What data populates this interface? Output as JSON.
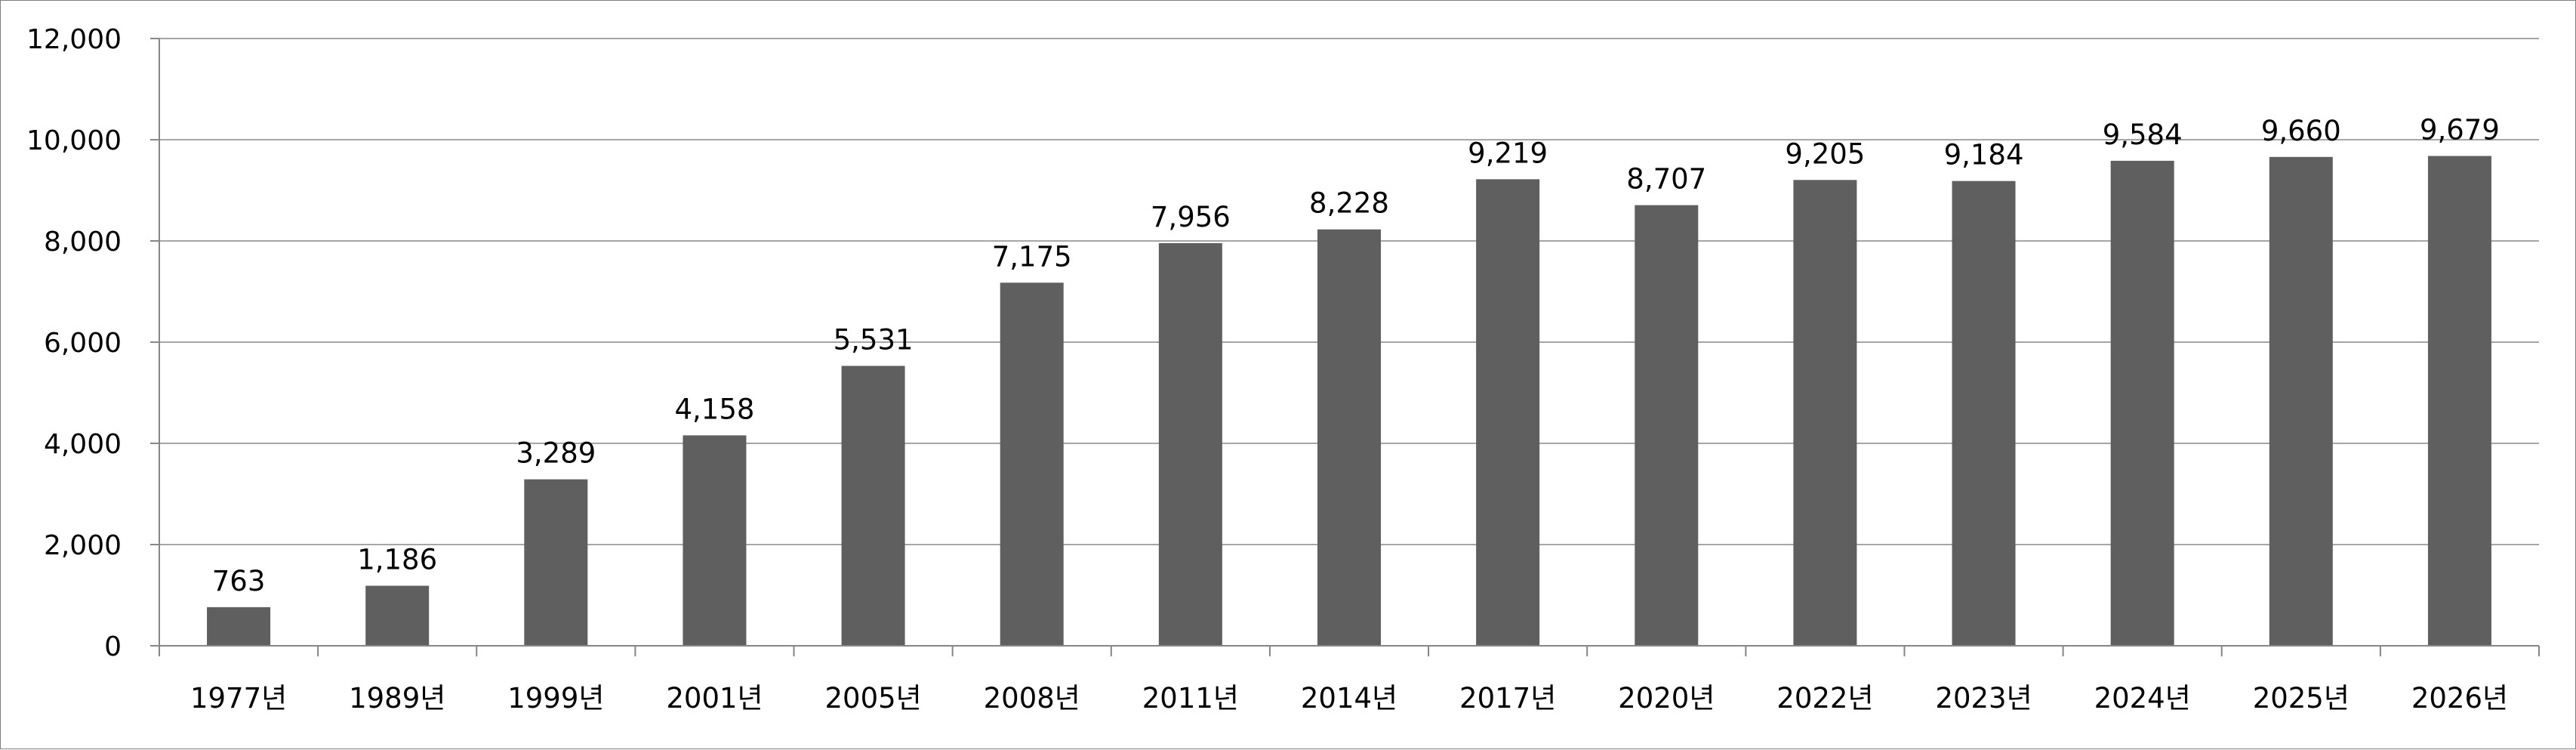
{
  "chart_data": {
    "type": "bar",
    "title": "",
    "xlabel": "",
    "ylabel": "",
    "categories": [
      "1977년",
      "1989년",
      "1999년",
      "2001년",
      "2005년",
      "2008년",
      "2011년",
      "2014년",
      "2017년",
      "2020년",
      "2022년",
      "2023년",
      "2024년",
      "2025년",
      "2026년"
    ],
    "values": [
      763,
      1186,
      3289,
      4158,
      5531,
      7175,
      7956,
      8228,
      9219,
      8707,
      9205,
      9184,
      9584,
      9660,
      9679
    ],
    "value_labels": [
      "763",
      "1,186",
      "3,289",
      "4,158",
      "5,531",
      "7,175",
      "7,956",
      "8,228",
      "9,219",
      "8,707",
      "9,205",
      "9,184",
      "9,584",
      "9,660",
      "9,679"
    ],
    "ylim": [
      0,
      12000
    ],
    "yticks": [
      0,
      2000,
      4000,
      6000,
      8000,
      10000,
      12000
    ],
    "ytick_labels": [
      "0",
      "2,000",
      "4,000",
      "6,000",
      "8,000",
      "10,000",
      "12,000"
    ],
    "grid": true,
    "legend": "none",
    "colors": {
      "bar": "#5f5f5f",
      "grid": "#a6a6a6",
      "axis": "#868686",
      "border": "#7f7f7f"
    }
  }
}
